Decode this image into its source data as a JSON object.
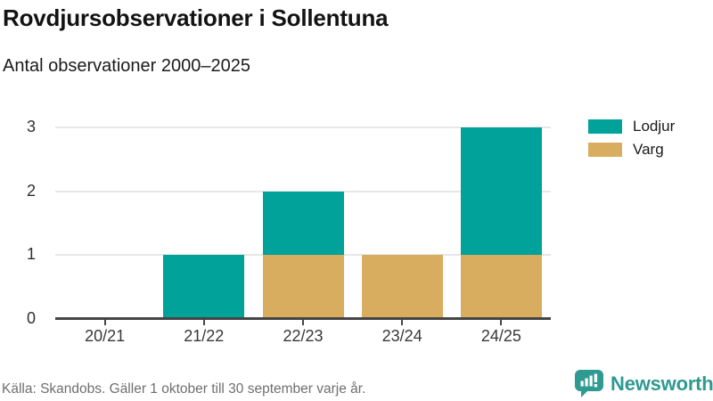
{
  "header": {
    "title": "Rovdjursobservationer i Sollentuna",
    "subtitle": "Antal observationer 2000–2025"
  },
  "chart_data": {
    "type": "bar",
    "stacked": true,
    "title": "Rovdjursobservationer i Sollentuna",
    "subtitle": "Antal observationer 2000–2025",
    "categories": [
      "20/21",
      "21/22",
      "22/23",
      "23/24",
      "24/25"
    ],
    "series": [
      {
        "name": "Lodjur",
        "color": "#00a299",
        "values": [
          0,
          1,
          1,
          0,
          2
        ]
      },
      {
        "name": "Varg",
        "color": "#d9ad60",
        "values": [
          0,
          0,
          1,
          1,
          1
        ]
      }
    ],
    "stack_order_bottom_to_top": [
      "Varg",
      "Lodjur"
    ],
    "ylim": [
      0,
      3
    ],
    "yticks": [
      0,
      1,
      2,
      3
    ],
    "xlabel": "",
    "ylabel": "",
    "grid": "horizontal",
    "legend_position": "right"
  },
  "footer": {
    "source": "Källa: Skandobs. Gäller 1 oktober till 30 september varje år.",
    "brand": "Newsworthy"
  },
  "colors": {
    "lodjur": "#00a299",
    "varg": "#d9ad60",
    "axis_line": "#454545",
    "gridline": "#e7e7e7",
    "axis_text": "#383838",
    "footer_text": "#6f6f6f",
    "brand_teal": "#2e9a91",
    "title_text": "#131313"
  }
}
